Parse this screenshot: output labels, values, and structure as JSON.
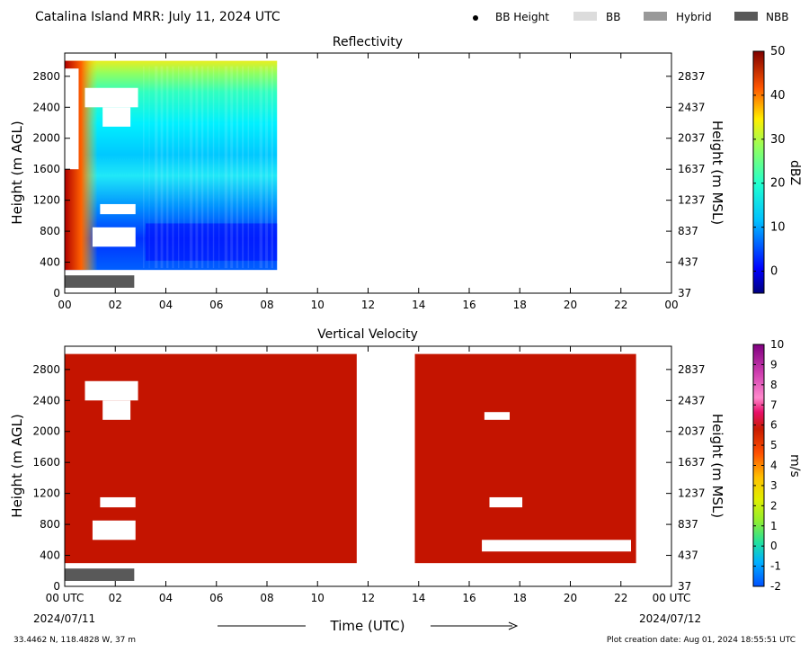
{
  "header": {
    "title": "Catalina Island MRR:  July 11, 2024 UTC",
    "legend": [
      {
        "label": "BB Height",
        "kind": "dot",
        "color": "#000000"
      },
      {
        "label": "BB",
        "kind": "box",
        "color": "#dcdcdc"
      },
      {
        "label": "Hybrid",
        "kind": "box",
        "color": "#999999"
      },
      {
        "label": "NBB",
        "kind": "box",
        "color": "#595959"
      }
    ]
  },
  "footer": {
    "coords": "33.4462 N, 118.4828 W, 37 m",
    "created": "Plot creation date: Aug 01, 2024 18:55:51 UTC",
    "xlabel": "Time (UTC)",
    "date_start": "2024/07/11",
    "date_end": "2024/07/12"
  },
  "chart_data": [
    {
      "type": "heatmap",
      "title": "Reflectivity",
      "ylabel": "Height (m AGL)",
      "ylabel_right": "Height (m MSL)",
      "xlim": [
        0,
        24
      ],
      "ylim": [
        0,
        3100
      ],
      "x_ticks": [
        "00",
        "02",
        "04",
        "06",
        "08",
        "10",
        "12",
        "14",
        "16",
        "18",
        "20",
        "22",
        "00"
      ],
      "y_ticks": [
        0,
        400,
        800,
        1200,
        1600,
        2000,
        2400,
        2800
      ],
      "y_ticks_right": [
        "37",
        "437",
        "837",
        "1237",
        "1637",
        "2037",
        "2437",
        "2837"
      ],
      "colorbar": {
        "label": "dBZ",
        "min": -5,
        "max": 50,
        "ticks": [
          "0",
          "10",
          "20",
          "30",
          "40",
          "50"
        ],
        "tick_values": [
          0,
          10,
          20,
          30,
          40,
          50
        ]
      },
      "data_extent": {
        "time_hours": [
          0,
          8.4
        ],
        "height_m": [
          300,
          3000
        ]
      },
      "nbb_periods": [
        {
          "start": 0,
          "end": 2.75
        }
      ],
      "gaps_m": [
        {
          "t0": 0.8,
          "t1": 2.9,
          "h0": 2400,
          "h1": 2650
        },
        {
          "t0": 1.5,
          "t1": 2.6,
          "h0": 2150,
          "h1": 2400
        },
        {
          "t0": 1.4,
          "t1": 2.8,
          "h0": 1020,
          "h1": 1150
        },
        {
          "t0": 1.1,
          "t1": 2.8,
          "h0": 600,
          "h1": 850
        },
        {
          "t0": 0,
          "t1": 0.55,
          "h0": 1600,
          "h1": 2900
        }
      ]
    },
    {
      "type": "heatmap",
      "title": "Vertical Velocity",
      "ylabel": "Height (m AGL)",
      "ylabel_right": "Height (m MSL)",
      "xlim": [
        0,
        24
      ],
      "ylim": [
        0,
        3100
      ],
      "x_ticks": [
        "00 UTC",
        "02",
        "04",
        "06",
        "08",
        "10",
        "12",
        "14",
        "16",
        "18",
        "20",
        "22",
        "00 UTC"
      ],
      "y_ticks": [
        0,
        400,
        800,
        1200,
        1600,
        2000,
        2400,
        2800
      ],
      "y_ticks_right": [
        "37",
        "437",
        "837",
        "1237",
        "1637",
        "2037",
        "2437",
        "2837"
      ],
      "colorbar": {
        "label": "m/s",
        "min": -2,
        "max": 10,
        "ticks": [
          "-2",
          "-1",
          "0",
          "1",
          "2",
          "3",
          "4",
          "5",
          "6",
          "7",
          "8",
          "9",
          "10"
        ],
        "tick_values": [
          -2,
          -1,
          0,
          1,
          2,
          3,
          4,
          5,
          6,
          7,
          8,
          9,
          10
        ]
      },
      "data_periods": [
        {
          "time_hours": [
            0,
            11.55
          ],
          "height_m": [
            300,
            3000
          ]
        },
        {
          "time_hours": [
            13.85,
            22.6
          ],
          "height_m": [
            300,
            3000
          ]
        }
      ],
      "nbb_periods": [
        {
          "start": 0,
          "end": 2.75
        }
      ],
      "gaps_m": [
        {
          "t0": 0.8,
          "t1": 2.9,
          "h0": 2400,
          "h1": 2650
        },
        {
          "t0": 1.5,
          "t1": 2.6,
          "h0": 2150,
          "h1": 2400
        },
        {
          "t0": 1.4,
          "t1": 2.8,
          "h0": 1020,
          "h1": 1150
        },
        {
          "t0": 1.1,
          "t1": 2.8,
          "h0": 600,
          "h1": 850
        },
        {
          "t0": 16.5,
          "t1": 22.4,
          "h0": 450,
          "h1": 600
        },
        {
          "t0": 16.8,
          "t1": 18.1,
          "h0": 1020,
          "h1": 1150
        },
        {
          "t0": 16.6,
          "t1": 17.6,
          "h0": 2150,
          "h1": 2250
        }
      ]
    }
  ]
}
